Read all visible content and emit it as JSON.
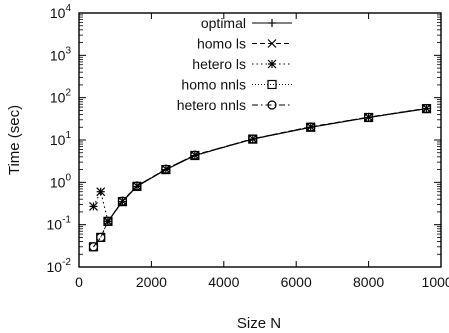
{
  "chart_data": {
    "type": "line",
    "xlabel": "Size N",
    "ylabel": "Time (sec)",
    "xlim": [
      0,
      10000
    ],
    "ylim": [
      0.01,
      10000
    ],
    "yscale": "log",
    "grid": false,
    "legend_position": "top-left",
    "x_ticks": [
      "0",
      "2000",
      "4000",
      "6000",
      "8000",
      "10000"
    ],
    "y_ticks": [
      {
        "base": "10",
        "exp": "-2"
      },
      {
        "base": "10",
        "exp": "-1"
      },
      {
        "base": "10",
        "exp": "0"
      },
      {
        "base": "10",
        "exp": "1"
      },
      {
        "base": "10",
        "exp": "2"
      },
      {
        "base": "10",
        "exp": "3"
      },
      {
        "base": "10",
        "exp": "4"
      }
    ],
    "series": [
      {
        "name": "optimal",
        "marker": "plus",
        "dash": "solid",
        "x": [
          800,
          1200,
          1600,
          2400,
          3200,
          4800,
          6400,
          8000,
          9600
        ],
        "y": [
          0.12,
          0.35,
          0.8,
          2.0,
          4.3,
          10.5,
          20,
          34,
          55
        ]
      },
      {
        "name": "homo ls",
        "marker": "cross",
        "dash": "dashed",
        "x": [
          800,
          1200,
          1600,
          2400,
          3200,
          4800,
          6400,
          8000,
          9600
        ],
        "y": [
          0.12,
          0.36,
          0.82,
          2.05,
          4.4,
          10.7,
          20.5,
          34.5,
          56
        ]
      },
      {
        "name": "hetero ls",
        "marker": "star",
        "dash": "dotted",
        "x": [
          400,
          600,
          800
        ],
        "y": [
          0.27,
          0.6,
          0.12
        ]
      },
      {
        "name": "homo nnls",
        "marker": "square",
        "dash": "finedotted",
        "x": [
          400,
          600,
          800,
          1200,
          1600,
          2400,
          3200,
          4800,
          6400,
          8000,
          9600
        ],
        "y": [
          0.03,
          0.05,
          0.12,
          0.35,
          0.8,
          2.0,
          4.3,
          10.5,
          20,
          34,
          55
        ]
      },
      {
        "name": "hetero nnls",
        "marker": "circle",
        "dash": "dashdot",
        "x": [
          400,
          600,
          800,
          1200,
          1600,
          2400,
          3200,
          4800,
          6400,
          8000,
          9600
        ],
        "y": [
          0.03,
          0.05,
          0.12,
          0.36,
          0.82,
          2.05,
          4.4,
          10.6,
          20.3,
          34.3,
          55.5
        ]
      }
    ]
  }
}
